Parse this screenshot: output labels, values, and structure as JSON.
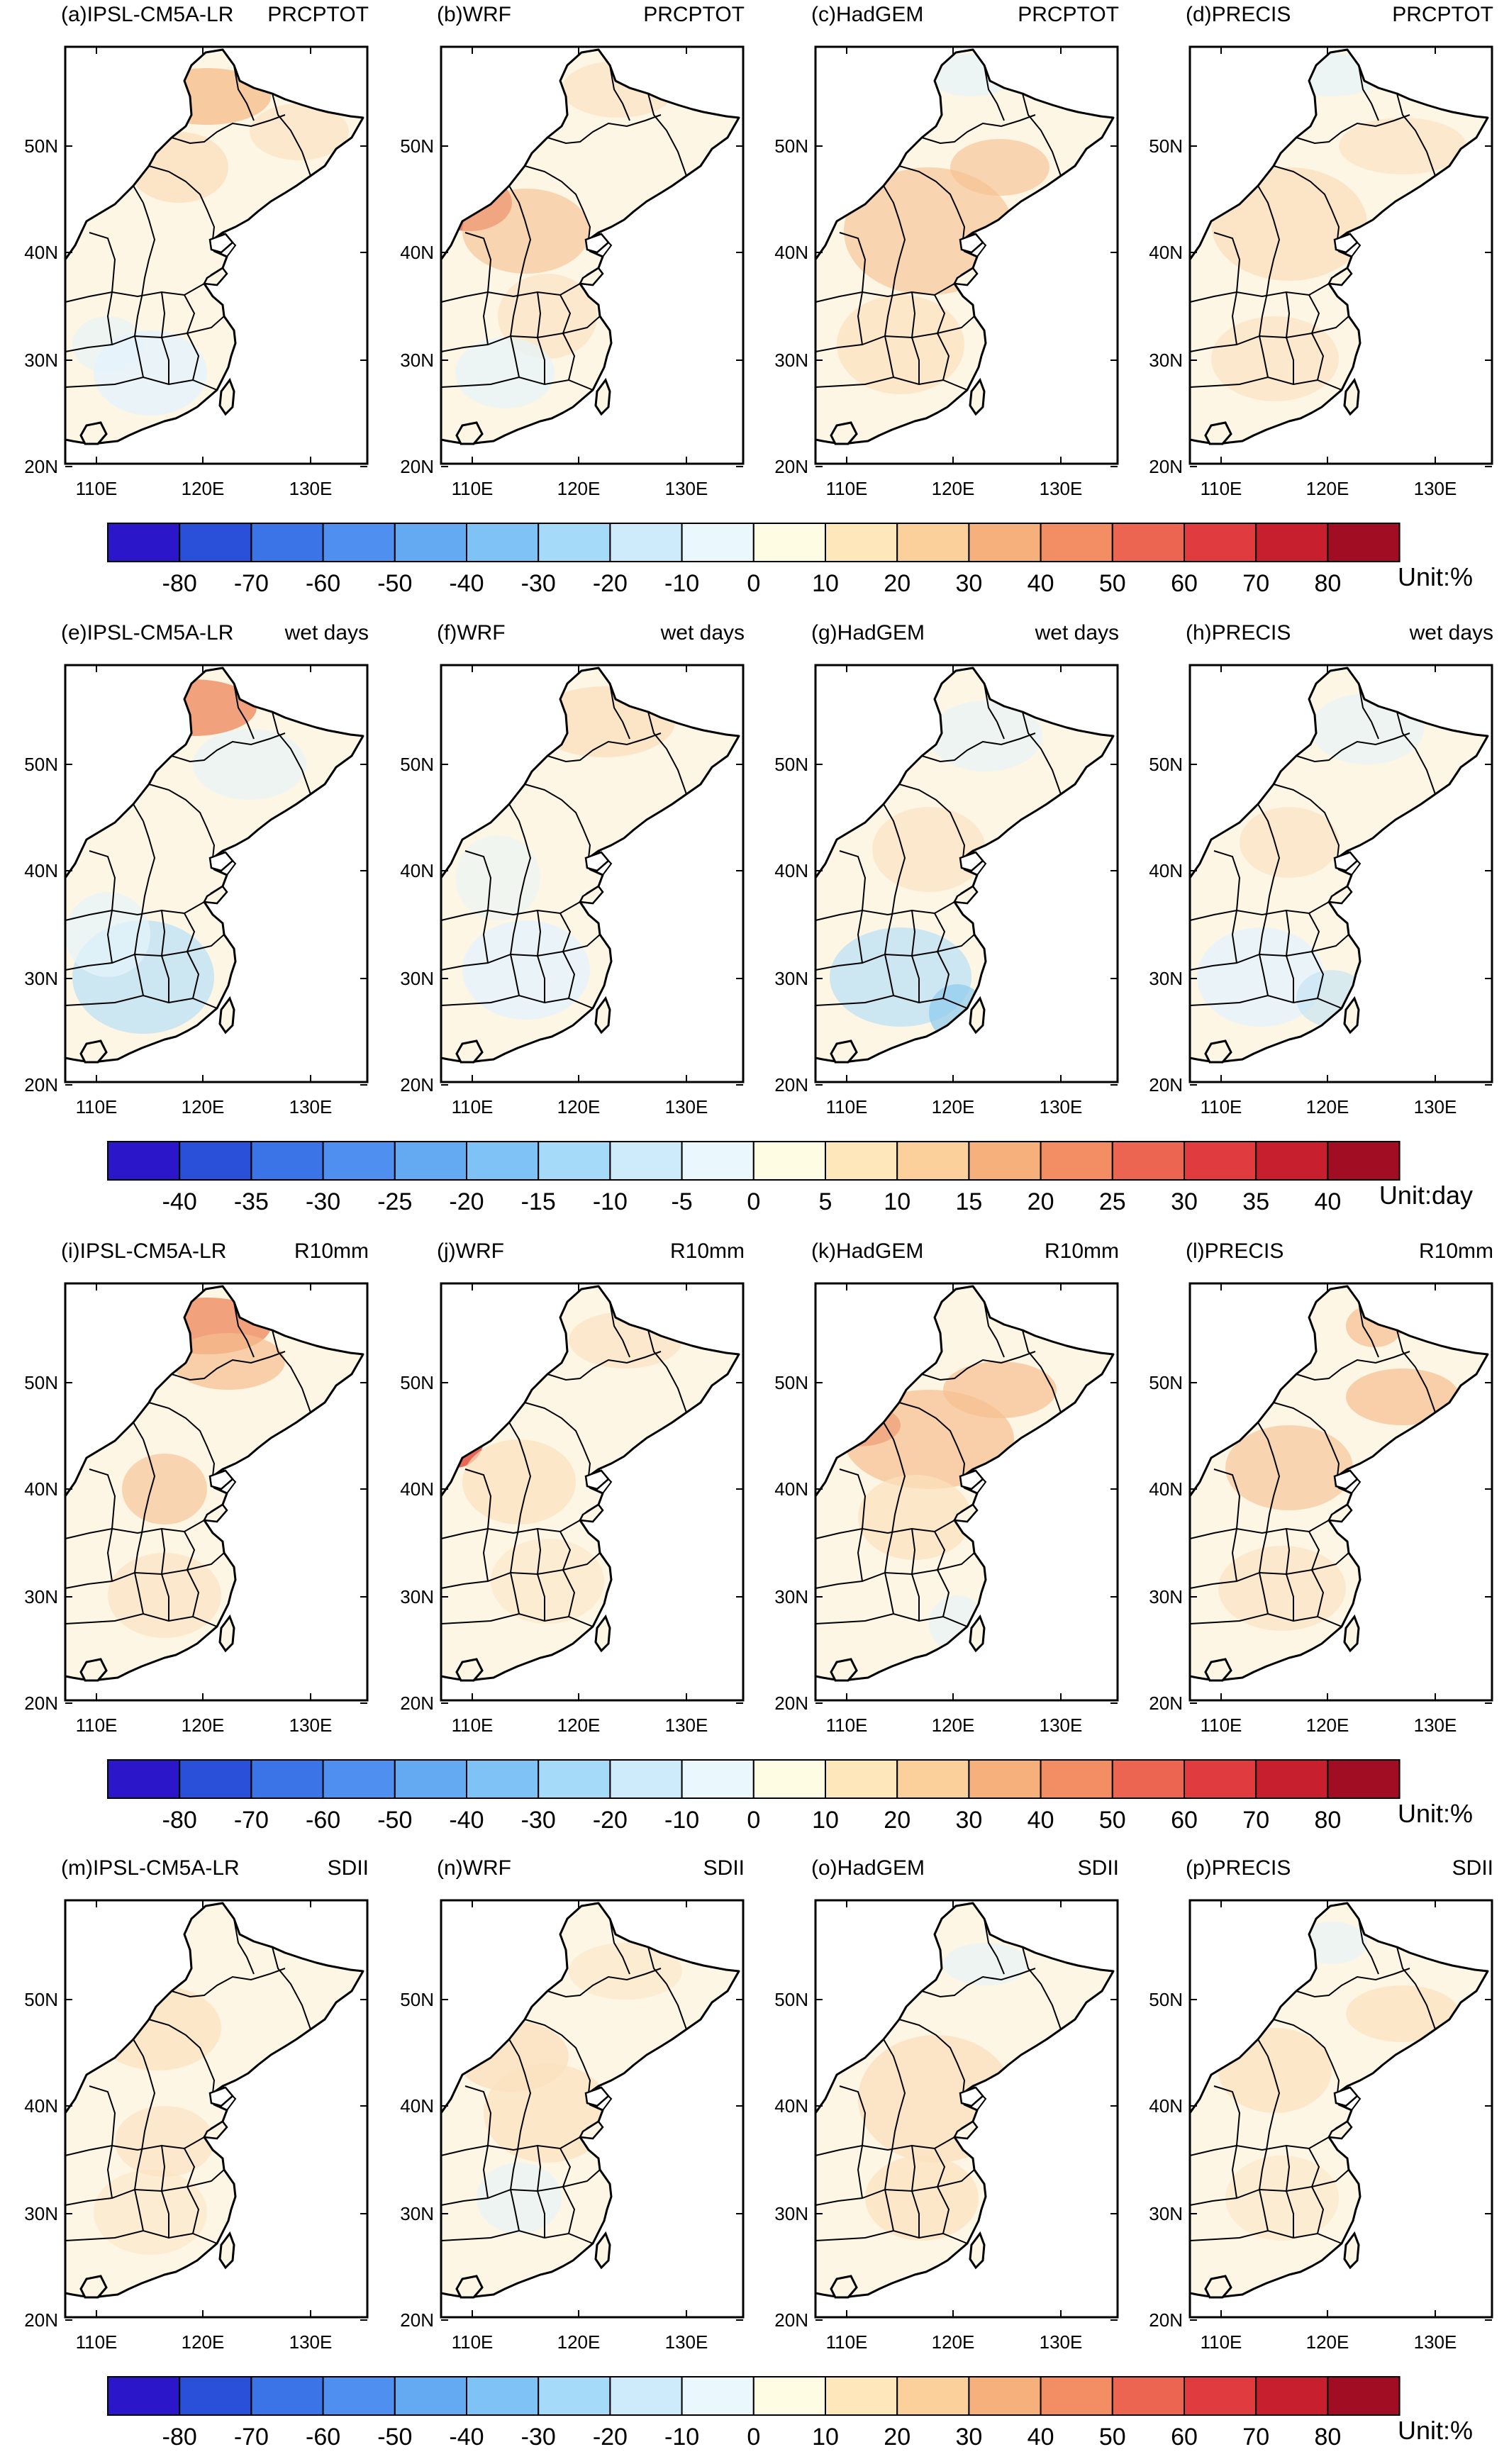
{
  "rows": [
    {
      "panels": [
        {
          "label": "(a)IPSL-CM5A-LR",
          "index": "PRCPTOT"
        },
        {
          "label": "(b)WRF",
          "index": "PRCPTOT"
        },
        {
          "label": "(c)HadGEM",
          "index": "PRCPTOT"
        },
        {
          "label": "(d)PRECIS",
          "index": "PRCPTOT"
        }
      ],
      "colorbar": {
        "ticks": [
          "-80",
          "-70",
          "-60",
          "-50",
          "-40",
          "-30",
          "-20",
          "-10",
          "0",
          "10",
          "20",
          "30",
          "40",
          "50",
          "60",
          "70",
          "80"
        ],
        "unit": "Unit:%"
      }
    },
    {
      "panels": [
        {
          "label": "(e)IPSL-CM5A-LR",
          "index": "wet days"
        },
        {
          "label": "(f)WRF",
          "index": "wet days"
        },
        {
          "label": "(g)HadGEM",
          "index": "wet days"
        },
        {
          "label": "(h)PRECIS",
          "index": "wet days"
        }
      ],
      "colorbar": {
        "ticks": [
          "-40",
          "-35",
          "-30",
          "-25",
          "-20",
          "-15",
          "-10",
          "-5",
          "0",
          "5",
          "10",
          "15",
          "20",
          "25",
          "30",
          "35",
          "40"
        ],
        "unit": "Unit:day"
      }
    },
    {
      "panels": [
        {
          "label": "(i)IPSL-CM5A-LR",
          "index": "R10mm"
        },
        {
          "label": "(j)WRF",
          "index": "R10mm"
        },
        {
          "label": "(k)HadGEM",
          "index": "R10mm"
        },
        {
          "label": "(l)PRECIS",
          "index": "R10mm"
        }
      ],
      "colorbar": {
        "ticks": [
          "-80",
          "-70",
          "-60",
          "-50",
          "-40",
          "-30",
          "-20",
          "-10",
          "0",
          "10",
          "20",
          "30",
          "40",
          "50",
          "60",
          "70",
          "80"
        ],
        "unit": "Unit:%"
      }
    },
    {
      "panels": [
        {
          "label": "(m)IPSL-CM5A-LR",
          "index": "SDII"
        },
        {
          "label": "(n)WRF",
          "index": "SDII"
        },
        {
          "label": "(o)HadGEM",
          "index": "SDII"
        },
        {
          "label": "(p)PRECIS",
          "index": "SDII"
        }
      ],
      "colorbar": {
        "ticks": [
          "-80",
          "-70",
          "-60",
          "-50",
          "-40",
          "-30",
          "-20",
          "-10",
          "0",
          "10",
          "20",
          "30",
          "40",
          "50",
          "60",
          "70",
          "80"
        ],
        "unit": "Unit:%"
      }
    }
  ],
  "axes": {
    "lat_ticks": [
      "50N",
      "40N",
      "30N",
      "20N"
    ],
    "lon_ticks": [
      "110E",
      "120E",
      "130E"
    ]
  },
  "palette": [
    "#2b16c9",
    "#2a4fd8",
    "#3a74e6",
    "#4f8ff0",
    "#63aaf3",
    "#7fc2f6",
    "#a6daf9",
    "#cdebfb",
    "#eaf7fd",
    "#fffce4",
    "#fde7bb",
    "#fbd09a",
    "#f6b07c",
    "#f28d64",
    "#ec6551",
    "#e03b3f",
    "#c81f2f",
    "#a10d23"
  ],
  "land_color": "#fdf6e4",
  "shade_colors": {
    "dry_light": "#e5f3fb",
    "dry": "#bfe2f5",
    "dry_strong": "#8ccbef",
    "wet_light": "#fbe1be",
    "wet": "#f5bf8e",
    "wet_strong": "#ef9870",
    "wet_extreme": "#e4503e"
  }
}
